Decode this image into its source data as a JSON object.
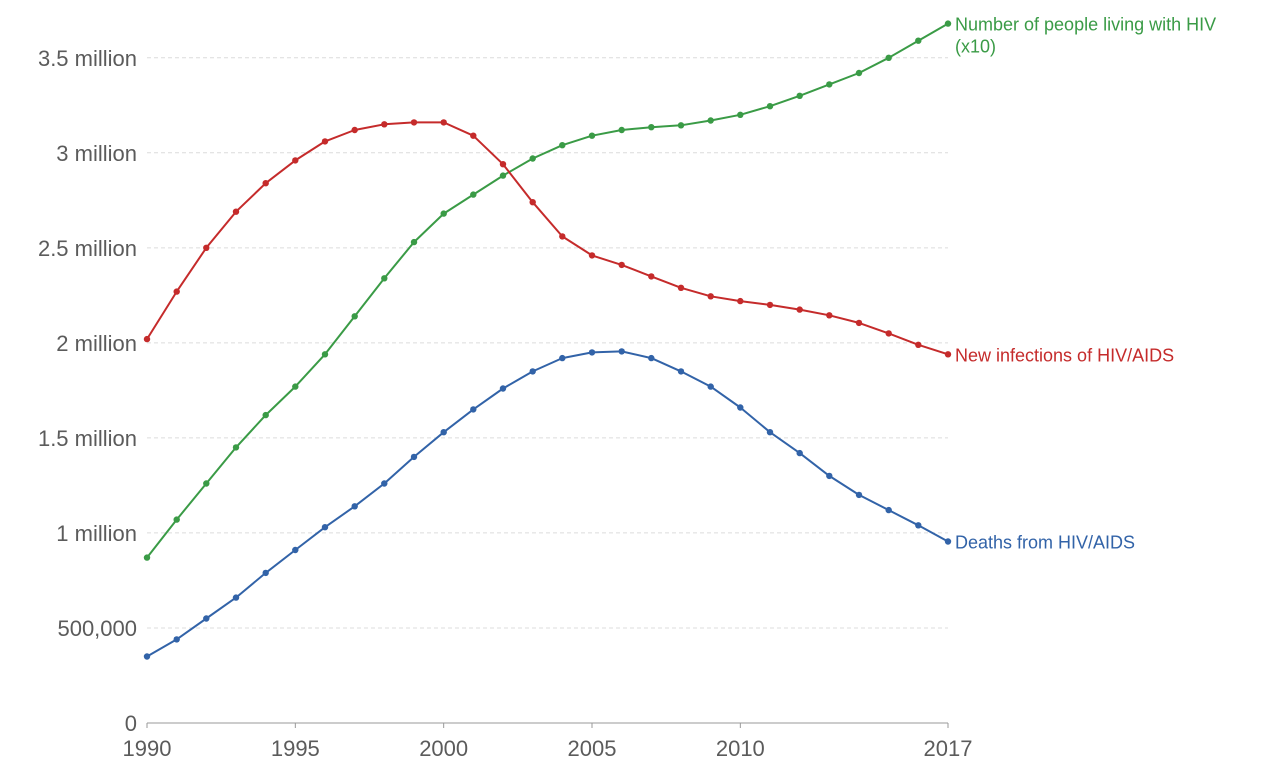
{
  "chart_data": {
    "type": "line",
    "title": "",
    "xlabel": "",
    "ylabel": "",
    "xlim": [
      1990,
      2017
    ],
    "ylim": [
      0,
      3700000
    ],
    "grid": true,
    "x_ticks": [
      1990,
      1995,
      2000,
      2005,
      2010,
      2017
    ],
    "x_tick_labels": [
      "1990",
      "1995",
      "2000",
      "2005",
      "2010",
      "2017"
    ],
    "y_ticks": [
      0,
      500000,
      1000000,
      1500000,
      2000000,
      2500000,
      3000000,
      3500000
    ],
    "y_tick_labels": [
      "0",
      "500,000",
      "1 million",
      "1.5 million",
      "2 million",
      "2.5 million",
      "3 million",
      "3.5 million"
    ],
    "x": [
      1990,
      1991,
      1992,
      1993,
      1994,
      1995,
      1996,
      1997,
      1998,
      1999,
      2000,
      2001,
      2002,
      2003,
      2004,
      2005,
      2006,
      2007,
      2008,
      2009,
      2010,
      2011,
      2012,
      2013,
      2014,
      2015,
      2016,
      2017
    ],
    "series": [
      {
        "name": "Number of people living with HIV (x10)",
        "label_lines": [
          "Number of people living with HIV",
          "(x10)"
        ],
        "color": "#3a9b46",
        "values": [
          870000,
          1070000,
          1260000,
          1450000,
          1620000,
          1770000,
          1940000,
          2140000,
          2340000,
          2530000,
          2680000,
          2780000,
          2880000,
          2970000,
          3040000,
          3090000,
          3120000,
          3135000,
          3145000,
          3170000,
          3200000,
          3245000,
          3300000,
          3360000,
          3420000,
          3500000,
          3590000,
          3680000
        ]
      },
      {
        "name": "New infections of HIV/AIDS",
        "label_lines": [
          "New infections of HIV/AIDS"
        ],
        "color": "#c52b2b",
        "values": [
          2020000,
          2270000,
          2500000,
          2690000,
          2840000,
          2960000,
          3060000,
          3120000,
          3150000,
          3160000,
          3160000,
          3090000,
          2940000,
          2740000,
          2560000,
          2460000,
          2410000,
          2350000,
          2290000,
          2245000,
          2220000,
          2200000,
          2175000,
          2145000,
          2105000,
          2050000,
          1990000,
          1940000
        ]
      },
      {
        "name": "Deaths from HIV/AIDS",
        "label_lines": [
          "Deaths from HIV/AIDS"
        ],
        "color": "#3263a8",
        "values": [
          350000,
          440000,
          550000,
          660000,
          790000,
          910000,
          1030000,
          1140000,
          1260000,
          1400000,
          1530000,
          1650000,
          1760000,
          1850000,
          1920000,
          1950000,
          1955000,
          1920000,
          1850000,
          1770000,
          1660000,
          1530000,
          1420000,
          1300000,
          1200000,
          1120000,
          1040000,
          955000
        ]
      }
    ]
  }
}
